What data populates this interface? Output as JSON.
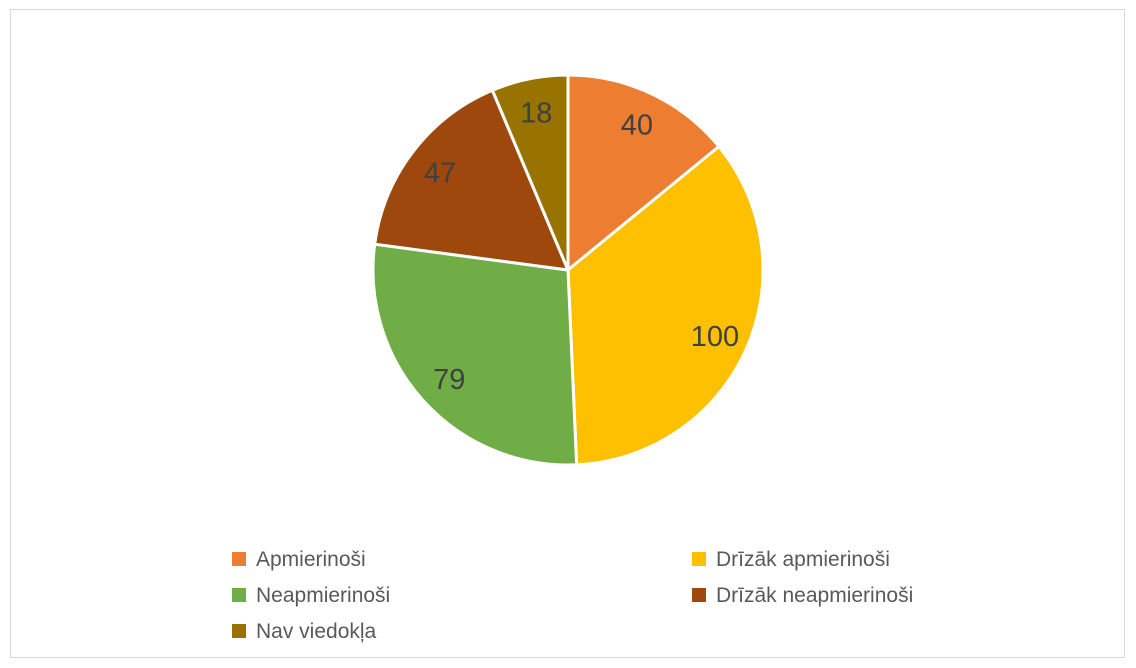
{
  "frame": {
    "border_color": "#d9d9d9",
    "background_color": "#ffffff"
  },
  "chart_data": {
    "type": "pie",
    "title": "",
    "categories": [
      "Apmierinoši",
      "Drīzāk apmierinoši",
      "Neapmierinoši",
      "Drīzāk neapmierinoši",
      "Nav viedokļa"
    ],
    "values": [
      40,
      100,
      79,
      47,
      18
    ],
    "data_labels": [
      "40",
      "100",
      "79",
      "47",
      "18"
    ],
    "colors": [
      "#ED7D31",
      "#FFC000",
      "#70AD47",
      "#9E480E",
      "#997300"
    ],
    "start_angle_deg": 0,
    "direction": "clockwise",
    "slice_border_color": "#ffffff",
    "label_color": "#404040",
    "legend_position": "bottom",
    "legend_columns": 2,
    "legend_text_color": "#595959"
  }
}
